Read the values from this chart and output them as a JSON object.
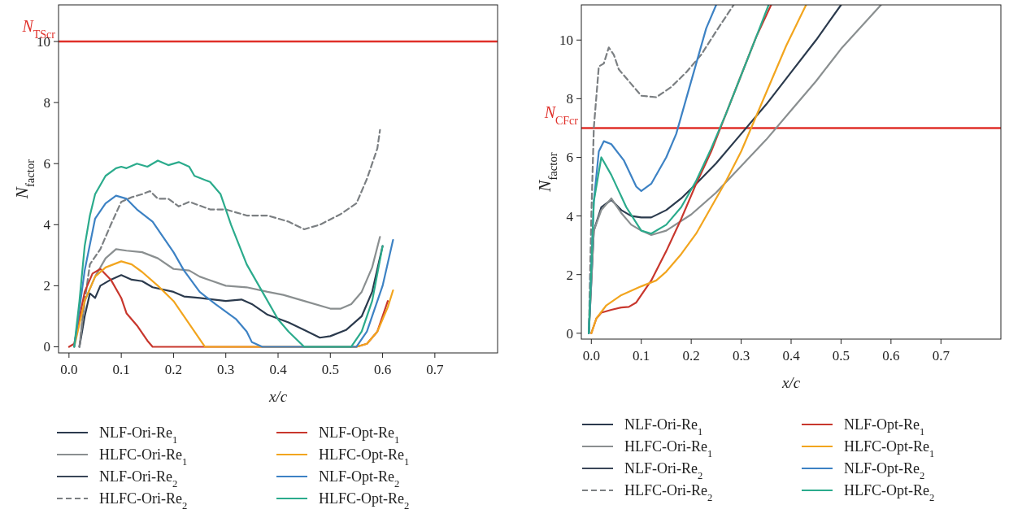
{
  "chart_data": [
    {
      "type": "line",
      "xlabel": "x/c",
      "ylabel": "N$_{factor}$",
      "xlim": [
        -0.02,
        0.82
      ],
      "ylim": [
        -0.2,
        11.2
      ],
      "xticks": [
        {
          "value": 0,
          "label": "0.0"
        },
        0.1,
        0.2,
        0.3,
        0.4,
        0.5,
        0.6,
        0.7
      ],
      "yticks": [
        0,
        2,
        4,
        6,
        8,
        10
      ],
      "legend": "bottom",
      "ref_lines": [
        {
          "axis": "y",
          "value": 10,
          "label": "N$_{TScr}$",
          "color": "#e0302a"
        }
      ],
      "series": [
        {
          "name": "NLF-Ori-Re$_{1}$",
          "color": "#2b3a4d",
          "x": [
            0.02,
            0.03,
            0.04,
            0.05,
            0.06,
            0.08,
            0.1,
            0.12,
            0.14,
            0.16,
            0.2,
            0.22,
            0.25,
            0.3,
            0.33,
            0.35,
            0.38,
            0.42,
            0.45,
            0.48,
            0.5,
            0.53,
            0.56,
            0.58,
            0.6
          ],
          "values": [
            0,
            1.0,
            1.75,
            1.6,
            2.0,
            2.2,
            2.35,
            2.2,
            2.15,
            1.95,
            1.8,
            1.65,
            1.6,
            1.5,
            1.55,
            1.4,
            1.05,
            0.8,
            0.55,
            0.3,
            0.35,
            0.55,
            1.0,
            1.8,
            3.3
          ]
        },
        {
          "name": "HLFC-Ori-Re$_{1}$",
          "color": "#8a8f90",
          "x": [
            0.02,
            0.03,
            0.05,
            0.07,
            0.09,
            0.11,
            0.14,
            0.17,
            0.2,
            0.23,
            0.25,
            0.3,
            0.34,
            0.38,
            0.41,
            0.45,
            0.5,
            0.52,
            0.54,
            0.56,
            0.58,
            0.595
          ],
          "values": [
            0,
            1.5,
            2.3,
            2.9,
            3.2,
            3.15,
            3.1,
            2.9,
            2.55,
            2.5,
            2.3,
            2.0,
            1.95,
            1.8,
            1.7,
            1.5,
            1.25,
            1.25,
            1.4,
            1.8,
            2.6,
            3.6
          ]
        },
        {
          "name": "NLF-Ori-Re$_{2}$",
          "color": "#3a4658"
        },
        {
          "name": "HLFC-Ori-Re$_{2}$",
          "color": "#7b7f82",
          "line_style": "dashed",
          "x": [
            0.02,
            0.03,
            0.04,
            0.06,
            0.08,
            0.1,
            0.12,
            0.14,
            0.155,
            0.17,
            0.19,
            0.21,
            0.23,
            0.27,
            0.3,
            0.34,
            0.38,
            0.42,
            0.45,
            0.48,
            0.52,
            0.55,
            0.57,
            0.59,
            0.595
          ],
          "values": [
            0,
            1.5,
            2.7,
            3.2,
            4.0,
            4.75,
            4.9,
            5.0,
            5.1,
            4.85,
            4.85,
            4.6,
            4.75,
            4.5,
            4.5,
            4.3,
            4.3,
            4.1,
            3.85,
            4.0,
            4.35,
            4.7,
            5.5,
            6.5,
            7.1
          ]
        },
        {
          "name": "NLF-Opt-Re$_{1}$",
          "color": "#c8372d",
          "x": [
            0,
            0.01,
            0.03,
            0.045,
            0.06,
            0.08,
            0.1,
            0.11,
            0.13,
            0.15,
            0.16,
            0.55,
            0.57,
            0.59,
            0.61
          ],
          "values": [
            0,
            0.1,
            1.8,
            2.4,
            2.55,
            2.2,
            1.6,
            1.1,
            0.7,
            0.2,
            0,
            0,
            0.1,
            0.5,
            1.5
          ]
        },
        {
          "name": "HLFC-Opt-Re$_{1}$",
          "color": "#f2a51e",
          "x": [
            0.01,
            0.03,
            0.05,
            0.07,
            0.1,
            0.12,
            0.14,
            0.17,
            0.2,
            0.22,
            0.24,
            0.26,
            0.55,
            0.57,
            0.59,
            0.61,
            0.62
          ],
          "values": [
            0,
            1.5,
            2.3,
            2.6,
            2.8,
            2.7,
            2.45,
            2.0,
            1.5,
            1.0,
            0.5,
            0,
            0,
            0.1,
            0.5,
            1.3,
            1.85
          ]
        },
        {
          "name": "NLF-Opt-Re$_{2}$",
          "color": "#3d82c4",
          "x": [
            0.01,
            0.03,
            0.05,
            0.07,
            0.09,
            0.11,
            0.13,
            0.16,
            0.18,
            0.2,
            0.22,
            0.25,
            0.28,
            0.32,
            0.34,
            0.35,
            0.37,
            0.55,
            0.57,
            0.6,
            0.62
          ],
          "values": [
            0,
            2.5,
            4.2,
            4.7,
            4.95,
            4.85,
            4.5,
            4.1,
            3.6,
            3.1,
            2.5,
            1.8,
            1.4,
            0.9,
            0.5,
            0.15,
            0,
            0,
            0.5,
            2.0,
            3.5
          ]
        },
        {
          "name": "HLFC-Opt-Re$_{2}$",
          "color": "#2bab8c",
          "x": [
            0.01,
            0.02,
            0.03,
            0.04,
            0.05,
            0.07,
            0.09,
            0.1,
            0.11,
            0.13,
            0.15,
            0.17,
            0.19,
            0.21,
            0.23,
            0.24,
            0.27,
            0.29,
            0.31,
            0.34,
            0.37,
            0.4,
            0.42,
            0.45,
            0.54,
            0.56,
            0.58,
            0.6
          ],
          "values": [
            0,
            1.5,
            3.3,
            4.3,
            5.0,
            5.6,
            5.85,
            5.9,
            5.85,
            6.0,
            5.9,
            6.1,
            5.95,
            6.05,
            5.9,
            5.6,
            5.4,
            5.0,
            4.0,
            2.7,
            1.8,
            0.9,
            0.5,
            0,
            0,
            0.5,
            1.5,
            3.3
          ]
        }
      ]
    },
    {
      "type": "line",
      "xlabel": "x/c",
      "ylabel": "N$_{factor}$",
      "xlim": [
        -0.02,
        0.82
      ],
      "ylim": [
        -0.2,
        11.2
      ],
      "xticks": [
        {
          "value": 0,
          "label": "0.0"
        },
        0.1,
        0.2,
        0.3,
        0.4,
        0.5,
        0.6,
        0.7
      ],
      "yticks": [
        0,
        2,
        4,
        6,
        8,
        10
      ],
      "legend": "bottom",
      "ref_lines": [
        {
          "axis": "y",
          "value": 7,
          "label": "N$_{CFcr}$",
          "color": "#e0302a"
        }
      ],
      "series": [
        {
          "name": "NLF-Ori-Re$_{1}$",
          "color": "#2b3a4d",
          "x": [
            -0.005,
            0.005,
            0.02,
            0.04,
            0.06,
            0.08,
            0.1,
            0.12,
            0.15,
            0.18,
            0.21,
            0.25,
            0.3,
            0.35,
            0.4,
            0.45,
            0.5
          ],
          "values": [
            0,
            3.5,
            4.3,
            4.55,
            4.2,
            4.0,
            3.95,
            3.95,
            4.2,
            4.6,
            5.1,
            5.8,
            6.8,
            7.8,
            8.9,
            10.0,
            11.2
          ]
        },
        {
          "name": "HLFC-Ori-Re$_{1}$",
          "color": "#8a8f90",
          "x": [
            -0.005,
            0.005,
            0.02,
            0.04,
            0.06,
            0.08,
            0.1,
            0.12,
            0.15,
            0.2,
            0.25,
            0.3,
            0.35,
            0.4,
            0.45,
            0.5,
            0.58
          ],
          "values": [
            0,
            3.5,
            4.2,
            4.6,
            4.1,
            3.7,
            3.5,
            3.35,
            3.5,
            4.05,
            4.8,
            5.7,
            6.6,
            7.6,
            8.6,
            9.7,
            11.2
          ]
        },
        {
          "name": "NLF-Ori-Re$_{2}$",
          "color": "#3a4658"
        },
        {
          "name": "HLFC-Ori-Re$_{2}$",
          "color": "#7b7f82",
          "line_style": "dashed",
          "x": [
            -0.005,
            0,
            0.005,
            0.015,
            0.025,
            0.035,
            0.045,
            0.055,
            0.08,
            0.1,
            0.13,
            0.16,
            0.19,
            0.22,
            0.25,
            0.285
          ],
          "values": [
            0,
            4,
            7,
            9.1,
            9.2,
            9.75,
            9.5,
            9.0,
            8.5,
            8.1,
            8.05,
            8.4,
            8.9,
            9.5,
            10.3,
            11.2
          ]
        },
        {
          "name": "NLF-Opt-Re$_{1}$",
          "color": "#c8372d",
          "x": [
            0,
            0.01,
            0.02,
            0.04,
            0.06,
            0.075,
            0.09,
            0.1,
            0.12,
            0.15,
            0.18,
            0.21,
            0.24,
            0.27,
            0.3,
            0.33,
            0.36
          ],
          "values": [
            0,
            0.5,
            0.7,
            0.8,
            0.88,
            0.9,
            1.05,
            1.3,
            1.8,
            2.8,
            3.9,
            5.1,
            6.2,
            7.5,
            8.8,
            10.1,
            11.2
          ]
        },
        {
          "name": "HLFC-Opt-Re$_{1}$",
          "color": "#f2a51e",
          "x": [
            0,
            0.01,
            0.03,
            0.06,
            0.1,
            0.13,
            0.15,
            0.18,
            0.21,
            0.24,
            0.27,
            0.3,
            0.33,
            0.36,
            0.39,
            0.43
          ],
          "values": [
            0,
            0.5,
            0.95,
            1.3,
            1.6,
            1.8,
            2.1,
            2.7,
            3.4,
            4.3,
            5.2,
            6.2,
            7.4,
            8.6,
            9.8,
            11.2
          ]
        },
        {
          "name": "NLF-Opt-Re$_{2}$",
          "color": "#3d82c4",
          "x": [
            -0.005,
            0.005,
            0.015,
            0.025,
            0.04,
            0.065,
            0.09,
            0.1,
            0.12,
            0.15,
            0.17,
            0.19,
            0.21,
            0.23,
            0.25
          ],
          "values": [
            0,
            4.5,
            6.2,
            6.55,
            6.45,
            5.9,
            5.0,
            4.85,
            5.1,
            6.0,
            6.8,
            8.0,
            9.2,
            10.4,
            11.2
          ]
        },
        {
          "name": "HLFC-Opt-Re$_{2}$",
          "color": "#2bab8c",
          "x": [
            -0.005,
            0.005,
            0.02,
            0.04,
            0.07,
            0.1,
            0.12,
            0.15,
            0.18,
            0.21,
            0.24,
            0.27,
            0.3,
            0.33,
            0.355
          ],
          "values": [
            0,
            4.5,
            6.0,
            5.4,
            4.3,
            3.5,
            3.4,
            3.7,
            4.3,
            5.2,
            6.3,
            7.5,
            8.8,
            10.1,
            11.2
          ]
        }
      ]
    }
  ]
}
